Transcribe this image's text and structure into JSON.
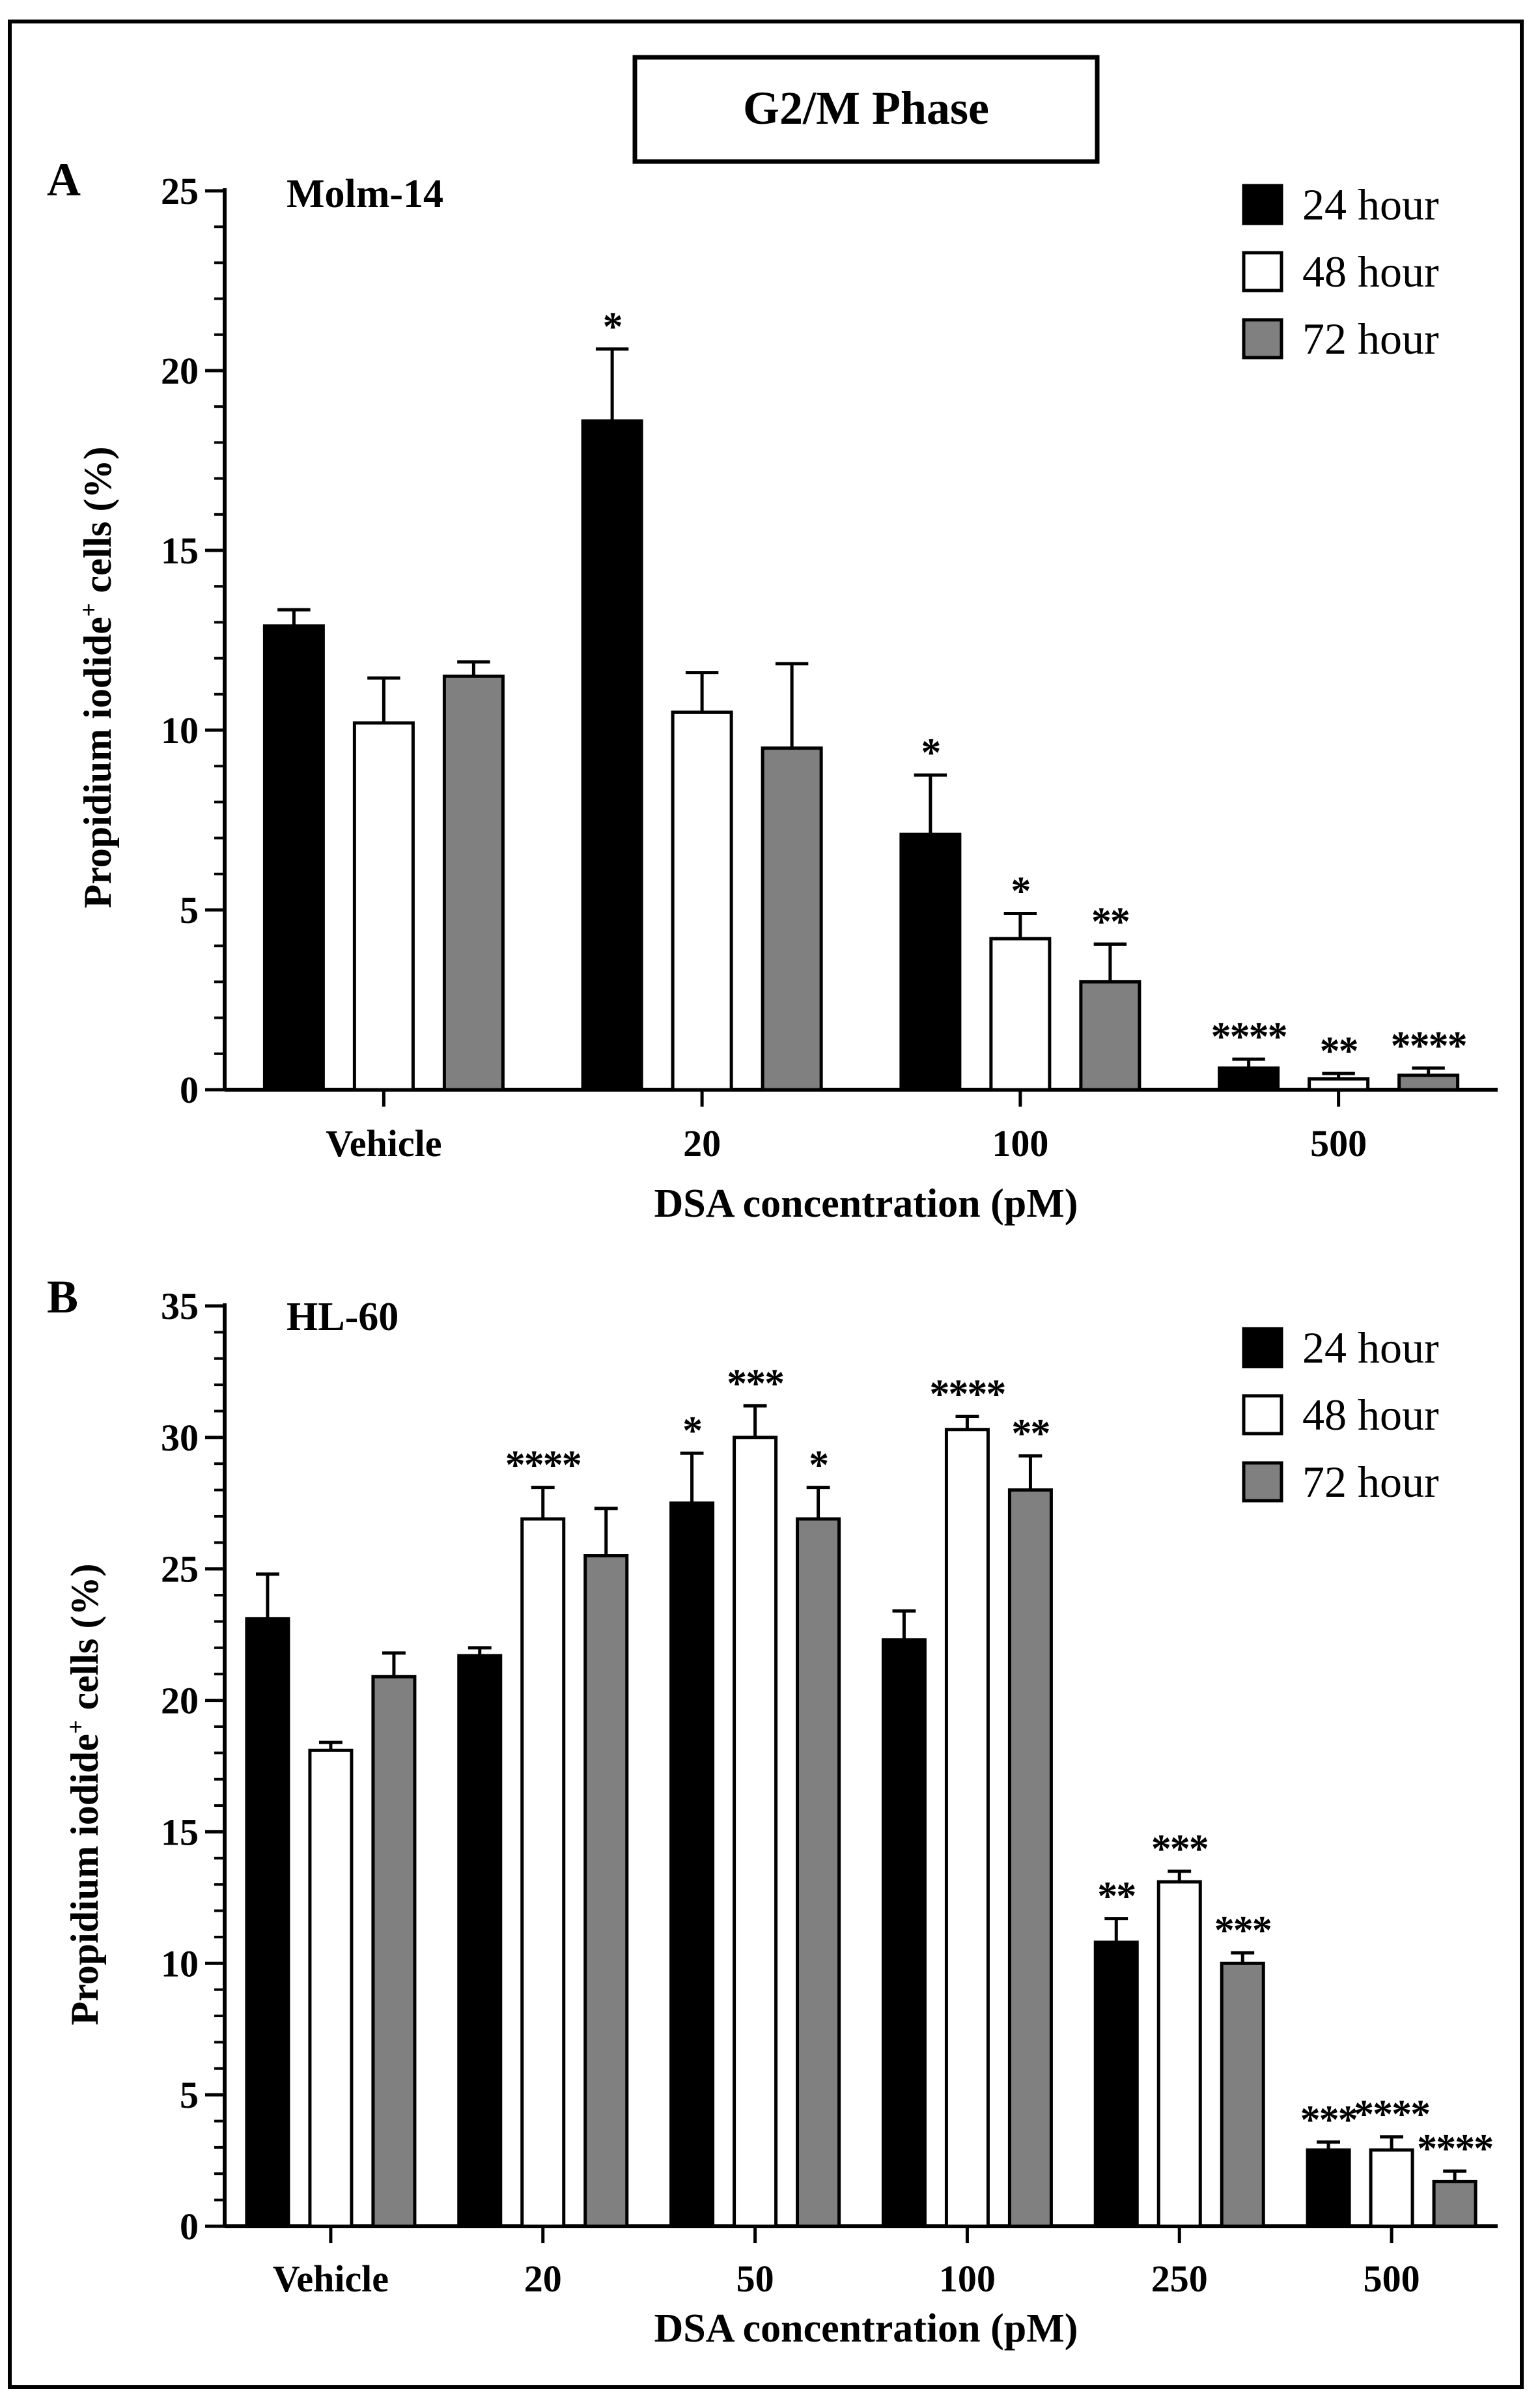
{
  "figure": {
    "title": "G2/M Phase"
  },
  "chart_data": [
    {
      "type": "bar",
      "panel_label": "A",
      "cell_line": "Molm-14",
      "title": "",
      "xlabel": "DSA concentration (pM)",
      "ylabel_main": "Propidium iodide",
      "ylabel_sup": "+",
      "ylabel_rest": " cells (%)",
      "ylim": [
        0,
        25
      ],
      "yticks": [
        0,
        5,
        10,
        15,
        20,
        25
      ],
      "ytick_labels": [
        "0",
        "5",
        "10",
        "15",
        "20",
        "25"
      ],
      "categories": [
        "Vehicle",
        "20",
        "100",
        "500"
      ],
      "series": [
        {
          "name": "24 hour",
          "color": "#000000",
          "values": [
            12.9,
            18.6,
            7.1,
            0.6
          ],
          "errors": [
            0.45,
            2.0,
            1.65,
            0.25
          ],
          "sig": [
            "",
            "*",
            "*",
            "****"
          ]
        },
        {
          "name": "48 hour",
          "color": "#ffffff",
          "values": [
            10.2,
            10.5,
            4.2,
            0.3
          ],
          "errors": [
            1.25,
            1.1,
            0.7,
            0.15
          ],
          "sig": [
            "",
            "",
            "*",
            "**"
          ]
        },
        {
          "name": "72 hour",
          "color": "#808080",
          "values": [
            11.5,
            9.5,
            3.0,
            0.4
          ],
          "errors": [
            0.4,
            2.35,
            1.05,
            0.2
          ],
          "sig": [
            "",
            "",
            "**",
            "****"
          ]
        }
      ],
      "legend": {
        "position": "top-right",
        "entries": [
          "24 hour",
          "48 hour",
          "72 hour"
        ]
      }
    },
    {
      "type": "bar",
      "panel_label": "B",
      "cell_line": "HL-60",
      "title": "",
      "xlabel": "DSA concentration (pM)",
      "ylabel_main": "Propidium iodide",
      "ylabel_sup": "+",
      "ylabel_rest": " cells (%)",
      "ylim": [
        0,
        35
      ],
      "yticks": [
        0,
        5,
        10,
        15,
        20,
        25,
        30,
        35
      ],
      "ytick_labels": [
        "0",
        "5",
        "10",
        "15",
        "20",
        "25",
        "30",
        "35"
      ],
      "categories": [
        "Vehicle",
        "20",
        "50",
        "100",
        "250",
        "500"
      ],
      "series": [
        {
          "name": "24 hour",
          "color": "#000000",
          "values": [
            23.1,
            21.7,
            27.5,
            22.3,
            10.8,
            2.9
          ],
          "errors": [
            1.7,
            0.3,
            1.9,
            1.1,
            0.9,
            0.3
          ],
          "sig": [
            "",
            "",
            "*",
            "",
            "**",
            "***"
          ]
        },
        {
          "name": "48 hour",
          "color": "#ffffff",
          "values": [
            18.1,
            26.9,
            30.0,
            30.3,
            13.1,
            2.9
          ],
          "errors": [
            0.3,
            1.2,
            1.2,
            0.5,
            0.4,
            0.5
          ],
          "sig": [
            "",
            "****",
            "***",
            "****",
            "***",
            "****"
          ]
        },
        {
          "name": "72 hour",
          "color": "#808080",
          "values": [
            20.9,
            25.5,
            26.9,
            28.0,
            10.0,
            1.7
          ],
          "errors": [
            0.9,
            1.8,
            1.2,
            1.3,
            0.4,
            0.4
          ],
          "sig": [
            "",
            "",
            "*",
            "**",
            "***",
            "****"
          ]
        }
      ],
      "legend": {
        "position": "top-right",
        "entries": [
          "24 hour",
          "48 hour",
          "72 hour"
        ]
      }
    }
  ]
}
